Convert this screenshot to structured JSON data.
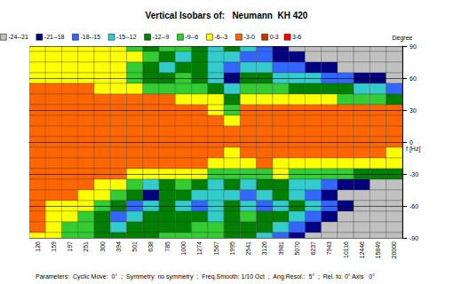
{
  "chart_data": {
    "type": "heatmap",
    "title": "Vertical Isobars of:   Neumann  KH 420",
    "x_label": "f [Hz]",
    "y_label": "Degree",
    "categories": [
      "126",
      "159",
      "197",
      "251",
      "300",
      "394",
      "501",
      "638",
      "785",
      "1000",
      "1274",
      "1567",
      "1995",
      "2541",
      "3126",
      "3981",
      "5070",
      "6237",
      "7943",
      "10116",
      "12446",
      "15849",
      "20000"
    ],
    "angles": [
      90,
      80,
      70,
      60,
      50,
      40,
      30,
      20,
      10,
      0,
      -10,
      -20,
      -30,
      -40,
      -50,
      -60,
      -70,
      -80,
      -90
    ],
    "cells": [
      [
        -4,
        -4,
        -4,
        -4,
        -4,
        -4,
        -7,
        -10,
        -7,
        -7,
        -10,
        -13,
        -10,
        -13,
        -16,
        -19,
        -22,
        -22,
        -22,
        -22,
        -22,
        -22,
        -22
      ],
      [
        -4,
        -4,
        -4,
        -4,
        -4,
        -4,
        -4,
        -7,
        -10,
        -13,
        -10,
        -13,
        -13,
        -16,
        -16,
        -19,
        -19,
        -22,
        -22,
        -22,
        -22,
        -22,
        -22
      ],
      [
        -4,
        -4,
        -4,
        -4,
        -4,
        -4,
        -7,
        -10,
        -13,
        -10,
        -10,
        -13,
        -16,
        -13,
        -13,
        -16,
        -16,
        -19,
        -19,
        -22,
        -22,
        -22,
        -22
      ],
      [
        -4,
        -4,
        -4,
        -4,
        -4,
        -4,
        -7,
        -10,
        -10,
        -7,
        -10,
        -13,
        -19,
        -10,
        -10,
        -13,
        -13,
        -13,
        -16,
        -16,
        -19,
        -19,
        -22
      ],
      [
        -1,
        -1,
        -1,
        -1,
        -4,
        -4,
        -4,
        -7,
        -7,
        -7,
        -7,
        -10,
        -13,
        -7,
        -7,
        -7,
        -10,
        -10,
        -10,
        -10,
        -13,
        -13,
        -16
      ],
      [
        -1,
        -1,
        -1,
        -1,
        -1,
        -1,
        -1,
        -1,
        -1,
        -4,
        -4,
        -4,
        -10,
        -4,
        -4,
        -4,
        -4,
        -4,
        -4,
        -7,
        -7,
        -7,
        -10
      ],
      [
        -1,
        -1,
        -1,
        -1,
        -1,
        -1,
        -1,
        -1,
        -1,
        -1,
        -1,
        -4,
        -7,
        -1,
        -1,
        -1,
        -1,
        -1,
        -1,
        -1,
        -1,
        -1,
        -1
      ],
      [
        -1,
        -1,
        -1,
        -1,
        -1,
        -1,
        -1,
        -1,
        -1,
        -1,
        -1,
        -1,
        -4,
        -1,
        -1,
        -1,
        -1,
        -1,
        -1,
        -1,
        -1,
        -1,
        -1
      ],
      [
        -1,
        -1,
        -1,
        -1,
        -1,
        -1,
        -1,
        -1,
        -1,
        -1,
        -1,
        -1,
        -1,
        -1,
        -1,
        -1,
        -1,
        -1,
        -1,
        -1,
        -1,
        -1,
        -1
      ],
      [
        -1,
        -1,
        -1,
        -1,
        -1,
        -1,
        -1,
        -1,
        -1,
        -1,
        -1,
        -1,
        -1,
        -1,
        -1,
        -1,
        -1,
        -1,
        -1,
        -1,
        -1,
        -1,
        -1
      ],
      [
        -1,
        -1,
        -1,
        -1,
        -1,
        -1,
        -1,
        -1,
        -1,
        -1,
        -1,
        -1,
        -4,
        -1,
        -1,
        -1,
        -1,
        -1,
        -1,
        -1,
        -1,
        -1,
        -4
      ],
      [
        -1,
        -1,
        -1,
        -1,
        -1,
        -1,
        -1,
        -1,
        -1,
        -1,
        -1,
        -4,
        -4,
        -4,
        -1,
        -4,
        -4,
        -4,
        -4,
        -4,
        -4,
        -4,
        -4
      ],
      [
        -1,
        -1,
        -1,
        -1,
        -1,
        -1,
        -4,
        -4,
        -4,
        -4,
        -4,
        -7,
        -7,
        -7,
        -7,
        -4,
        -7,
        -7,
        -7,
        -7,
        -10,
        -10,
        -10
      ],
      [
        -1,
        -1,
        -1,
        -1,
        -4,
        -4,
        -7,
        -13,
        -10,
        -7,
        -10,
        -13,
        -10,
        -13,
        -10,
        -10,
        -13,
        -13,
        -16,
        -19,
        -19,
        -22,
        -22
      ],
      [
        -1,
        -1,
        -1,
        -4,
        -4,
        -7,
        -10,
        -19,
        -10,
        -10,
        -13,
        -13,
        -13,
        -16,
        -13,
        -10,
        -13,
        -16,
        -19,
        -22,
        -22,
        -22,
        -22
      ],
      [
        -1,
        -4,
        -4,
        -4,
        -7,
        -10,
        -16,
        -13,
        -10,
        -13,
        -16,
        -13,
        -10,
        -13,
        -16,
        -13,
        -10,
        -13,
        -16,
        -19,
        -22,
        -22,
        -22
      ],
      [
        -1,
        -4,
        -4,
        -7,
        -10,
        -16,
        -13,
        -10,
        -10,
        -10,
        -10,
        -13,
        -10,
        -7,
        -10,
        -10,
        -13,
        -16,
        -19,
        -22,
        -22,
        -22,
        -22
      ],
      [
        -1,
        -4,
        -7,
        -7,
        -10,
        -13,
        -10,
        -10,
        -10,
        -10,
        -7,
        -7,
        -10,
        -10,
        -10,
        -13,
        -16,
        -19,
        -22,
        -22,
        -22,
        -22,
        -22
      ],
      [
        -4,
        -4,
        -7,
        -7,
        -10,
        -10,
        -10,
        -10,
        -7,
        -7,
        -7,
        -7,
        -10,
        -10,
        -13,
        -16,
        -19,
        -22,
        -22,
        -22,
        -22,
        -22,
        -22
      ]
    ],
    "ylim": [
      -90,
      90
    ],
    "yticks": [
      -90,
      -60,
      -30,
      0,
      30,
      60,
      90
    ],
    "color_bins": [
      -24,
      -21,
      -18,
      -15,
      -12,
      -9,
      -6,
      -3,
      0,
      3,
      6
    ],
    "color_labels": [
      "-24--21",
      "-21--18",
      "-18--15",
      "-15--12",
      "-12--9",
      "-9--6",
      "-6--3",
      "-3-0",
      "0-3",
      "3-6"
    ],
    "colors": [
      "#c0c0c0",
      "#000080",
      "#3366ff",
      "#33cccc",
      "#008000",
      "#33cc33",
      "#ffff00",
      "#ff6600",
      "#cc3300",
      "#ff0000"
    ],
    "grid": true,
    "annotation": "Parameters:  Cyclic Move:  0°  ;  Symmetry: no symmetry  ;  Freq.Smooth: 1/10 Oct  ;  Ang.Resol.:  5°  ;  Rel. to: 0° Axis   0°"
  }
}
